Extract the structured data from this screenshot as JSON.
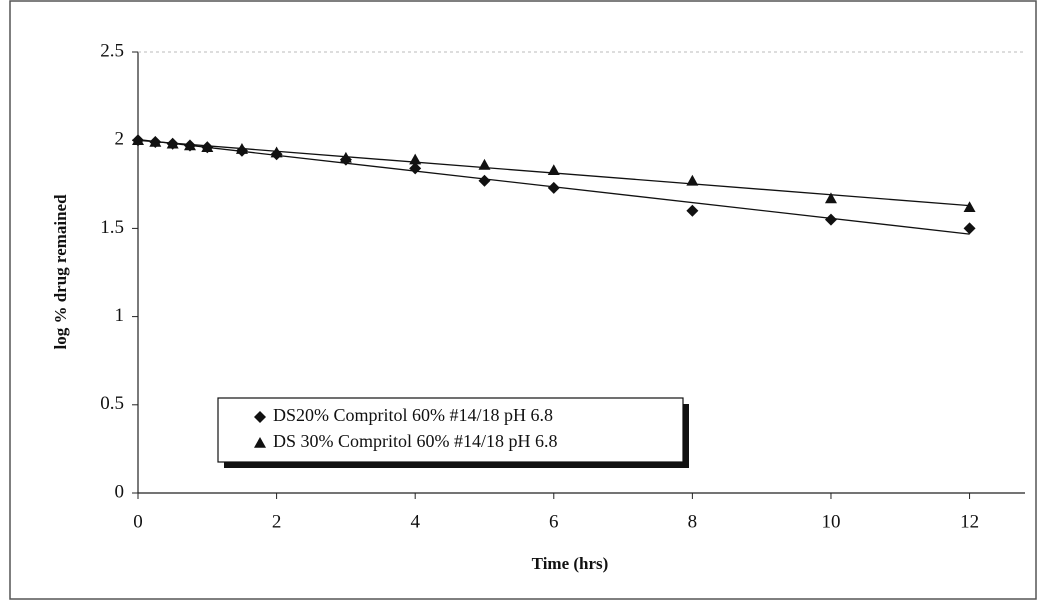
{
  "chart_data": {
    "type": "scatter",
    "xlabel": "Time (hrs)",
    "ylabel": "log % drug remained",
    "series": [
      {
        "name": "DS20% Compritol 60% #14/18 pH 6.8",
        "color": "#111111",
        "marker": "diamond",
        "x": [
          0,
          0.25,
          0.5,
          0.75,
          1,
          1.5,
          2,
          3,
          4,
          5,
          6,
          8,
          10,
          12
        ],
        "values": [
          2.0,
          1.99,
          1.98,
          1.97,
          1.96,
          1.94,
          1.92,
          1.89,
          1.84,
          1.77,
          1.73,
          1.6,
          1.55,
          1.5
        ]
      },
      {
        "name": "DS 30% Compritol 60% #14/18 pH 6.8",
        "color": "#111111",
        "marker": "triangle",
        "x": [
          0,
          0.25,
          0.5,
          0.75,
          1,
          1.5,
          2,
          3,
          4,
          5,
          6,
          8,
          10,
          12
        ],
        "values": [
          2.0,
          1.99,
          1.98,
          1.97,
          1.96,
          1.95,
          1.93,
          1.9,
          1.89,
          1.86,
          1.83,
          1.77,
          1.67,
          1.62
        ]
      }
    ],
    "trendline": true,
    "xlim": [
      0,
      12.8
    ],
    "xticks": [
      0,
      2,
      4,
      6,
      8,
      10,
      12
    ],
    "ylim": [
      0,
      2.5
    ],
    "yticks": [
      0,
      0.5,
      1,
      1.5,
      2,
      2.5
    ],
    "legend": "lower-left"
  }
}
